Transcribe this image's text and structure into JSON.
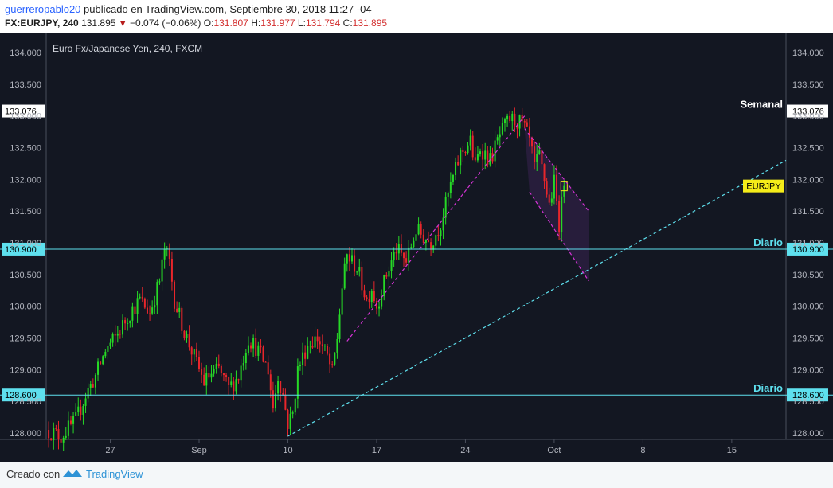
{
  "header": {
    "username": "guerreropablo20",
    "published": "publicado en TradingView.com, Septiembre 30, 2018 11:27 -04",
    "symbol": "FX:EURJPY, 240",
    "last": "131.895",
    "change": "−0.074 (−0.06%)",
    "open_label": "O:",
    "open": "131.807",
    "high_label": "H:",
    "high": "131.977",
    "low_label": "L:",
    "low": "131.794",
    "close_label": "C:",
    "close": "131.895"
  },
  "footer": {
    "created": "Creado con",
    "brand": "TradingView"
  },
  "colors": {
    "background": "#131722",
    "up": "#26d926",
    "down": "#e8262b",
    "level_line": "#ffffff",
    "cyan_line": "#5ee0ee",
    "channel": "#d633d6",
    "price_tag": "#f5ec19"
  },
  "chart_data": {
    "type": "candlestick",
    "title": "Euro Fx/Japanese Yen, 240, FXCM",
    "ylim": [
      127.9,
      134.3
    ],
    "yticks": [
      "128.000",
      "128.500",
      "129.000",
      "129.500",
      "130.000",
      "130.500",
      "131.000",
      "131.500",
      "132.000",
      "132.500",
      "133.000",
      "133.500",
      "134.000"
    ],
    "xlim": [
      0,
      150
    ],
    "xticks": [
      {
        "label": "27",
        "x": 13
      },
      {
        "label": "Sep",
        "x": 31
      },
      {
        "label": "10",
        "x": 49
      },
      {
        "label": "17",
        "x": 67
      },
      {
        "label": "24",
        "x": 85
      },
      {
        "label": "Oct",
        "x": 103
      },
      {
        "label": "8",
        "x": 121
      },
      {
        "label": "15",
        "x": 139
      }
    ],
    "waypoints": [
      [
        0,
        128.05
      ],
      [
        3,
        127.95
      ],
      [
        6,
        128.2
      ],
      [
        8,
        128.6
      ],
      [
        10,
        128.9
      ],
      [
        12,
        129.3
      ],
      [
        14,
        129.5
      ],
      [
        17,
        129.9
      ],
      [
        19,
        130.1
      ],
      [
        21,
        129.9
      ],
      [
        23,
        130.4
      ],
      [
        24,
        130.9
      ],
      [
        25,
        130.7
      ],
      [
        26,
        130.1
      ],
      [
        28,
        129.6
      ],
      [
        30,
        129.2
      ],
      [
        32,
        128.8
      ],
      [
        33,
        128.9
      ],
      [
        35,
        129.0
      ],
      [
        37,
        128.7
      ],
      [
        39,
        128.9
      ],
      [
        41,
        129.5
      ],
      [
        43,
        129.3
      ],
      [
        45,
        129.0
      ],
      [
        46,
        128.4
      ],
      [
        47,
        128.9
      ],
      [
        48,
        128.6
      ],
      [
        49,
        128.15
      ],
      [
        50,
        128.3
      ],
      [
        51,
        129.0
      ],
      [
        53,
        129.4
      ],
      [
        55,
        129.5
      ],
      [
        57,
        129.2
      ],
      [
        58,
        128.95
      ],
      [
        59,
        129.5
      ],
      [
        60,
        130.3
      ],
      [
        61,
        130.8
      ],
      [
        63,
        130.6
      ],
      [
        65,
        130.1
      ],
      [
        66,
        130.3
      ],
      [
        67,
        130.0
      ],
      [
        69,
        130.5
      ],
      [
        71,
        130.9
      ],
      [
        73,
        130.7
      ],
      [
        75,
        131.2
      ],
      [
        78,
        131.0
      ],
      [
        80,
        131.3
      ],
      [
        82,
        131.9
      ],
      [
        84,
        132.4
      ],
      [
        86,
        132.6
      ],
      [
        87,
        132.2
      ],
      [
        88,
        132.5
      ],
      [
        90,
        132.3
      ],
      [
        92,
        132.7
      ],
      [
        94,
        132.95
      ],
      [
        96,
        132.9
      ],
      [
        97,
        132.8
      ],
      [
        98,
        132.6
      ],
      [
        99,
        132.2
      ],
      [
        100,
        132.35
      ],
      [
        101,
        132.0
      ],
      [
        102,
        131.6
      ],
      [
        103,
        131.95
      ],
      [
        104,
        131.3
      ],
      [
        105,
        131.9
      ]
    ],
    "last_price": 131.895,
    "levels": [
      {
        "label": "Semanal",
        "price": 133.076,
        "price_label": "133.076"
      },
      {
        "label": "Diario",
        "price": 130.9,
        "price_label": "130.900"
      },
      {
        "label": "Diario",
        "price": 128.6,
        "price_label": "128.600"
      }
    ],
    "price_tag": "EURJPY",
    "trendlines": [
      {
        "style": "cyan-dashed",
        "from": [
          49,
          127.95
        ],
        "to": [
          150,
          132.3
        ]
      },
      {
        "style": "magenta-dashed",
        "from": [
          61,
          129.45
        ],
        "to": [
          97,
          133.0
        ]
      },
      {
        "style": "magenta-dashed",
        "from": [
          97,
          132.8
        ],
        "to": [
          110,
          131.5
        ]
      },
      {
        "style": "magenta-dashed",
        "from": [
          98,
          131.8
        ],
        "to": [
          110,
          130.4
        ]
      }
    ]
  }
}
